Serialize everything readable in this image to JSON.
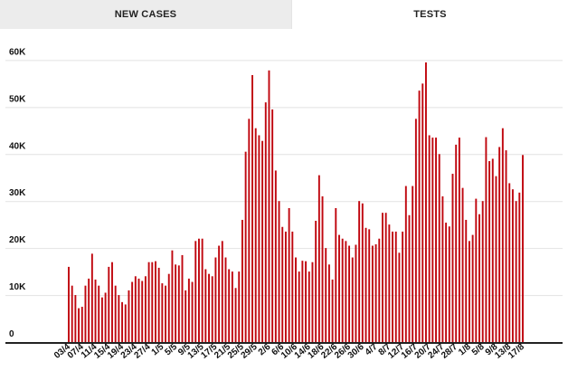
{
  "tabs": [
    {
      "label": "NEW CASES",
      "active": false
    },
    {
      "label": "TESTS",
      "active": true
    }
  ],
  "colors": {
    "bar": "#c0070f",
    "grid": "#e2e2e2",
    "axis": "#222222"
  },
  "chart_data": {
    "type": "bar",
    "title": "",
    "xlabel": "",
    "ylabel": "",
    "ylim": [
      0,
      62000
    ],
    "yticks": [
      0,
      10000,
      20000,
      30000,
      40000,
      50000,
      60000
    ],
    "ytick_labels": [
      "0",
      "10K",
      "20K",
      "30K",
      "40K",
      "50K",
      "60K"
    ],
    "grid": true,
    "xtick_labels": [
      "03/4",
      "07/4",
      "11/4",
      "15/4",
      "19/4",
      "23/4",
      "27/4",
      "1/5",
      "5/5",
      "9/5",
      "13/5",
      "17/5",
      "21/5",
      "25/5",
      "29/5",
      "2/6",
      "6/6",
      "10/6",
      "14/6",
      "18/6",
      "22/6",
      "26/6",
      "30/6",
      "4/7",
      "8/7",
      "12/7",
      "16/7",
      "20/7",
      "24/7",
      "28/7",
      "1/8",
      "5/8",
      "9/8",
      "13/8",
      "17/8"
    ],
    "values": [
      16000,
      12000,
      10000,
      7200,
      7500,
      12000,
      13500,
      18800,
      13300,
      12000,
      9500,
      10500,
      16000,
      17000,
      12000,
      10000,
      8500,
      8000,
      11000,
      12800,
      14000,
      13500,
      13000,
      14000,
      17000,
      17000,
      17200,
      15800,
      12500,
      12000,
      14500,
      19500,
      16500,
      16300,
      18500,
      11000,
      13500,
      12800,
      21500,
      22000,
      22000,
      15500,
      14500,
      14000,
      18000,
      20500,
      21500,
      18000,
      15500,
      15000,
      11500,
      15000,
      26000,
      40500,
      47500,
      56800,
      45500,
      44000,
      42800,
      51000,
      57800,
      49500,
      36500,
      30000,
      24500,
      23500,
      28500,
      23500,
      18000,
      15000,
      17300,
      17200,
      15000,
      17000,
      25800,
      35500,
      31000,
      20000,
      16500,
      13300,
      28500,
      22800,
      22000,
      21500,
      20500,
      18000,
      20700,
      30000,
      29500,
      24300,
      24000,
      20500,
      20800,
      22000,
      27500,
      27500,
      25000,
      23500,
      23500,
      19000,
      23500,
      33200,
      27000,
      33200,
      47500,
      53500,
      55000,
      59500,
      44000,
      43500,
      43500,
      40000,
      31000,
      25400,
      24600,
      35800,
      42000,
      43500,
      32800,
      26000,
      21500,
      22800,
      30500,
      27200,
      30000,
      43600,
      38500,
      39000,
      35300,
      41500,
      45500,
      40800,
      33800,
      32500,
      30000,
      31800,
      39800
    ]
  }
}
